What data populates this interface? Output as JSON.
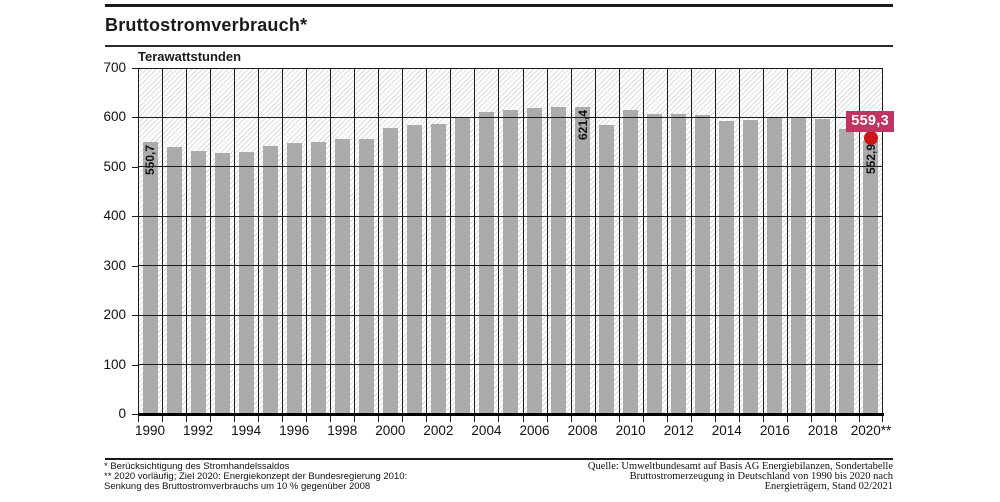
{
  "title": "Bruttostromverbrauch*",
  "chart_data": {
    "type": "bar",
    "title": "Bruttostromverbrauch*",
    "unit_label": "Terawattstunden",
    "ylabel": "Terawattstunden",
    "ylim": [
      0,
      700
    ],
    "y_ticks": [
      0,
      100,
      200,
      300,
      400,
      500,
      600,
      700
    ],
    "grid": "on",
    "categories": [
      1990,
      1991,
      1992,
      1993,
      1994,
      1995,
      1996,
      1997,
      1998,
      1999,
      2000,
      2001,
      2002,
      2003,
      2004,
      2005,
      2006,
      2007,
      2008,
      2009,
      2010,
      2011,
      2012,
      2013,
      2014,
      2015,
      2016,
      2017,
      2018,
      2019,
      2020
    ],
    "values": [
      550.7,
      539.6,
      532.8,
      527.9,
      530.8,
      541.6,
      547.4,
      549.9,
      556.7,
      557.3,
      579.6,
      585.1,
      587.4,
      600.7,
      610.2,
      614.1,
      619.8,
      621.0,
      621.4,
      583.7,
      615.3,
      607.1,
      607.1,
      604.3,
      593.2,
      595.1,
      599.4,
      600.1,
      595.9,
      577.2,
      552.9
    ],
    "bar_labels": [
      "550,7",
      "",
      "",
      "",
      "",
      "",
      "",
      "",
      "",
      "",
      "",
      "",
      "",
      "",
      "",
      "",
      "",
      "",
      "621,4",
      "",
      "",
      "",
      "",
      "",
      "",
      "",
      "",
      "",
      "",
      "",
      "552,9"
    ],
    "x_tick_labels": [
      "1990",
      "",
      "1992",
      "",
      "1994",
      "",
      "1996",
      "",
      "1998",
      "",
      "2000",
      "",
      "2002",
      "",
      "2004",
      "",
      "2006",
      "",
      "2008",
      "",
      "2010",
      "",
      "2012",
      "",
      "2014",
      "",
      "2016",
      "",
      "2018",
      "",
      "2020**"
    ],
    "target_marker": {
      "year": 2020,
      "value": 559.3,
      "label": "559,3"
    },
    "colors": {
      "bar": "#ababab",
      "marker_dot": "#cc1517",
      "badge_bg": "#c03460",
      "badge_text": "#ffffff",
      "grid": "#1c1c1c"
    }
  },
  "footnotes_left": [
    "* Berücksichtigung des Stromhandelssaldos",
    "** 2020 vorläufig; Ziel 2020: Energiekonzept der Bundesregierung 2010:",
    "Senkung des Bruttostromverbrauchs um 10 % gegenüber 2008"
  ],
  "source_lines": [
    "Quelle: Umweltbundesamt auf Basis AG Energiebilanzen, Sondertabelle",
    "Bruttostromerzeugung in Deutschland von 1990 bis 2020 nach",
    "Energieträgern, Stand 02/2021"
  ]
}
